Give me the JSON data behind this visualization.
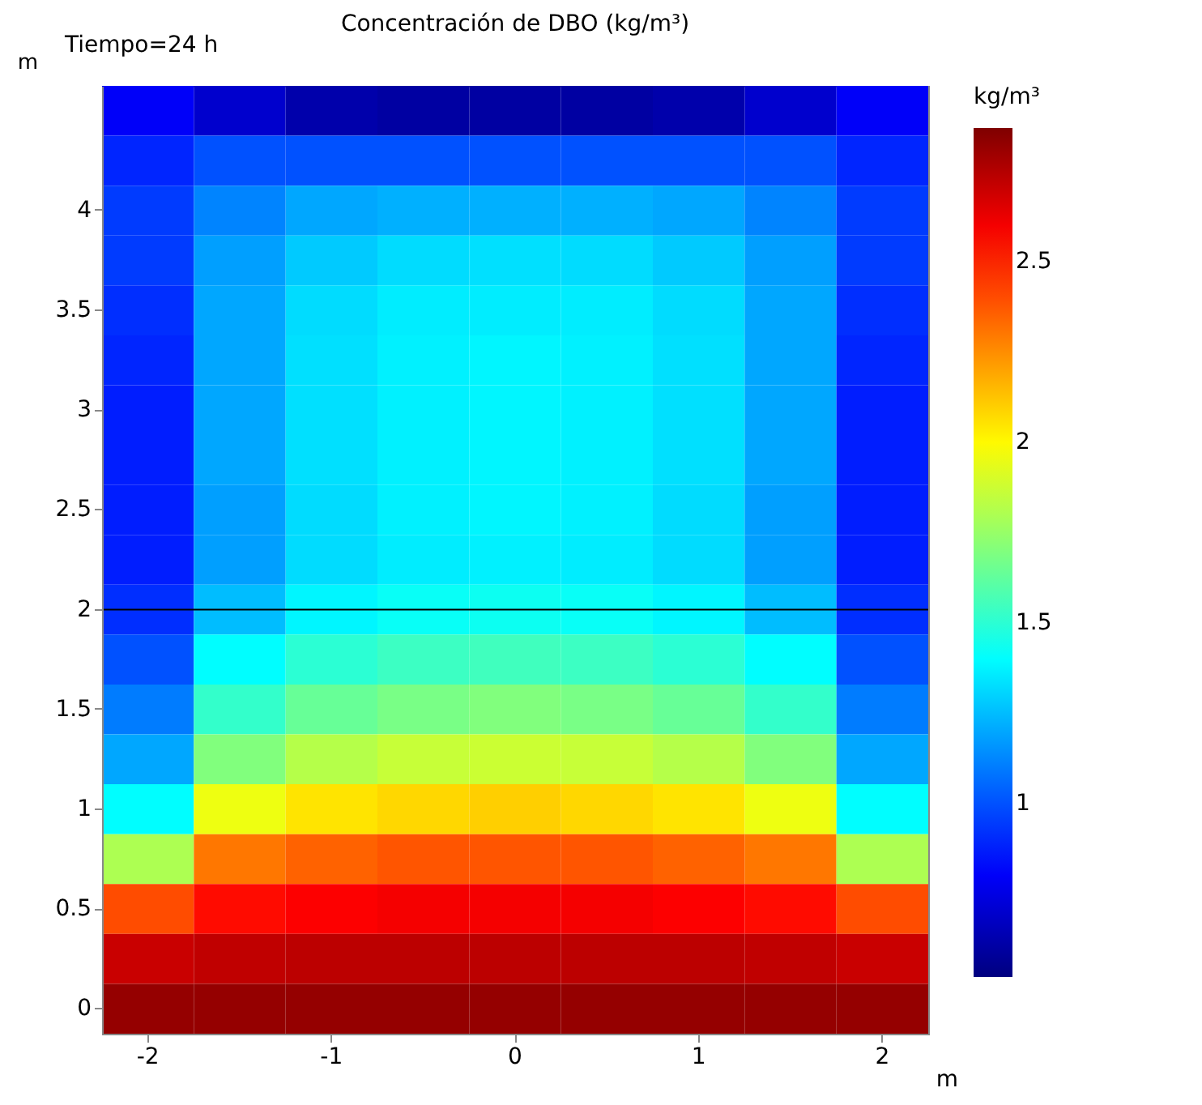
{
  "chart_data": {
    "type": "heatmap",
    "title": "Concentración de DBO  (kg/m³)",
    "annotations": [
      "Tiempo=24 h"
    ],
    "xlabel": "m",
    "ylabel": "m",
    "clabel": "kg/m³",
    "categories": [
      "-2",
      null,
      "-1",
      null,
      "0",
      null,
      "1",
      null,
      "2"
    ],
    "y_categories": [
      null,
      null,
      "4",
      null,
      "3.5",
      null,
      "3",
      null,
      "2.5",
      null,
      "2",
      null,
      "1.5",
      null,
      "1",
      null,
      "0.5",
      null,
      "0"
    ],
    "clim": [
      0.52,
      2.87
    ],
    "cticks": [
      1,
      1.5,
      2,
      2.5
    ],
    "ref_lines": [
      {
        "axis": "y",
        "value": "2",
        "color": "#000000"
      }
    ],
    "cells": [
      [
        0.8,
        0.7,
        0.62,
        0.6,
        0.6,
        0.6,
        0.62,
        0.7,
        0.8
      ],
      [
        0.9,
        1.0,
        1.0,
        1.0,
        1.0,
        1.0,
        1.0,
        1.0,
        0.9
      ],
      [
        0.95,
        1.12,
        1.2,
        1.22,
        1.22,
        1.22,
        1.2,
        1.12,
        0.95
      ],
      [
        0.95,
        1.18,
        1.28,
        1.32,
        1.33,
        1.32,
        1.28,
        1.18,
        0.95
      ],
      [
        0.92,
        1.2,
        1.32,
        1.36,
        1.36,
        1.36,
        1.32,
        1.2,
        0.92
      ],
      [
        0.9,
        1.2,
        1.33,
        1.37,
        1.38,
        1.37,
        1.33,
        1.2,
        0.9
      ],
      [
        0.88,
        1.2,
        1.33,
        1.37,
        1.38,
        1.37,
        1.33,
        1.2,
        0.88
      ],
      [
        0.88,
        1.2,
        1.33,
        1.37,
        1.38,
        1.37,
        1.33,
        1.2,
        0.88
      ],
      [
        0.88,
        1.18,
        1.32,
        1.37,
        1.38,
        1.37,
        1.32,
        1.18,
        0.88
      ],
      [
        0.88,
        1.18,
        1.32,
        1.36,
        1.37,
        1.36,
        1.32,
        1.18,
        0.88
      ],
      [
        0.92,
        1.25,
        1.38,
        1.42,
        1.43,
        1.42,
        1.38,
        1.25,
        0.92
      ],
      [
        1.0,
        1.4,
        1.5,
        1.54,
        1.55,
        1.54,
        1.5,
        1.4,
        1.0
      ],
      [
        1.1,
        1.52,
        1.64,
        1.68,
        1.7,
        1.68,
        1.64,
        1.52,
        1.1
      ],
      [
        1.2,
        1.7,
        1.82,
        1.86,
        1.87,
        1.86,
        1.82,
        1.7,
        1.2
      ],
      [
        1.4,
        1.95,
        2.05,
        2.08,
        2.1,
        2.08,
        2.05,
        1.95,
        1.4
      ],
      [
        1.8,
        2.3,
        2.35,
        2.38,
        2.38,
        2.38,
        2.35,
        2.3,
        1.8
      ],
      [
        2.4,
        2.55,
        2.58,
        2.6,
        2.6,
        2.6,
        2.58,
        2.55,
        2.4
      ],
      [
        2.7,
        2.72,
        2.73,
        2.73,
        2.73,
        2.73,
        2.73,
        2.72,
        2.7
      ],
      [
        2.82,
        2.82,
        2.82,
        2.82,
        2.82,
        2.82,
        2.82,
        2.82,
        2.82
      ]
    ]
  }
}
